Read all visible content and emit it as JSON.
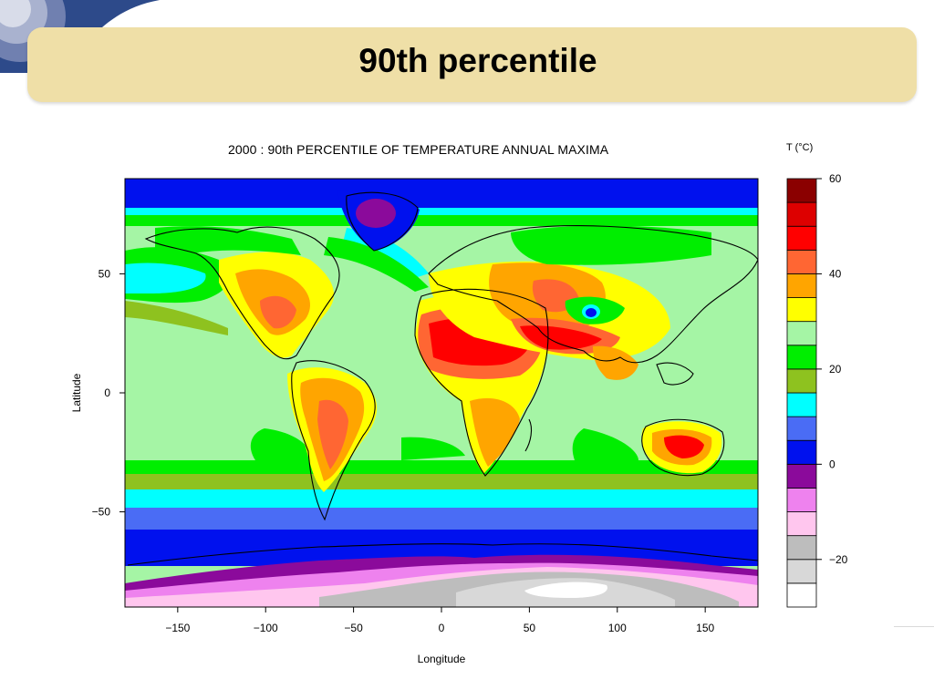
{
  "slide": {
    "title": "90th percentile"
  },
  "map": {
    "title": "2000 : 90th PERCENTILE OF TEMPERATURE ANNUAL MAXIMA",
    "xlabel": "Longitude",
    "ylabel": "Latitude",
    "xlim": [
      -180,
      180
    ],
    "ylim": [
      -90,
      90
    ],
    "xticks": [
      -150,
      -100,
      -50,
      0,
      50,
      100,
      150
    ],
    "yticks": [
      50,
      0,
      -50
    ],
    "xtick_labels": [
      "−150",
      "−100",
      "−50",
      "0",
      "50",
      "100",
      "150"
    ],
    "ytick_labels": [
      "50",
      "0",
      "−50"
    ],
    "projection": "equirectangular"
  },
  "legend": {
    "title": "T (°C)",
    "range": [
      -30,
      60
    ],
    "step": 5,
    "colors": [
      "#ffffff",
      "#d8d8d8",
      "#bdbdbd",
      "#ffc6ee",
      "#ee82ee",
      "#8b0a9b",
      "#0011ee",
      "#4a6cf5",
      "#00ffff",
      "#8ec21f",
      "#00ee00",
      "#a5f5a5",
      "#ffff00",
      "#ffa500",
      "#ff6633",
      "#ff0000",
      "#dd0000",
      "#8b0000"
    ],
    "tick_values": [
      60,
      40,
      20,
      0,
      -20
    ],
    "tick_labels": [
      "60",
      "40",
      "20",
      "0",
      "−20"
    ]
  }
}
